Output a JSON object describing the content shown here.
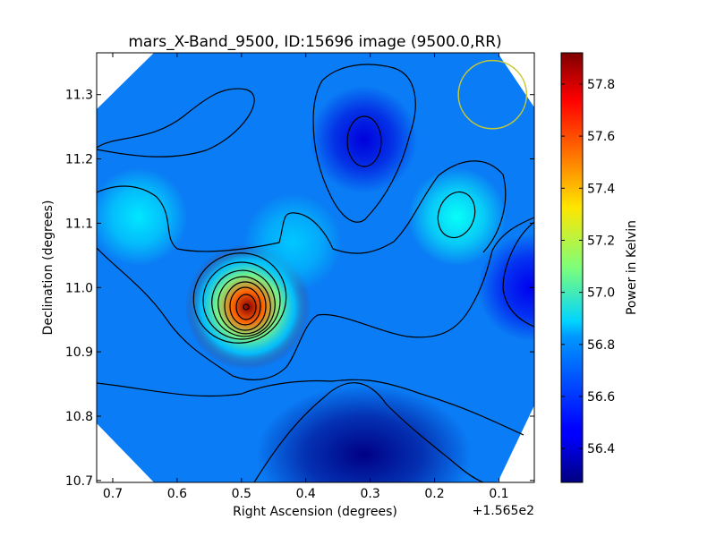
{
  "chart_data": {
    "type": "heatmap",
    "title": "mars_X-Band_9500, ID:15696 image (9500.0,RR)",
    "xlabel": "Right Ascension (degrees)",
    "ylabel": "Declination (degrees)",
    "x_offset_label": "+1.565e2",
    "colorbar_label": "Power in Kelvin",
    "xlim": [
      0.725,
      0.045
    ],
    "ylim": [
      10.697,
      11.365
    ],
    "x_ticks": [
      0.7,
      0.6,
      0.5,
      0.4,
      0.3,
      0.2,
      0.1
    ],
    "x_tick_labels": [
      "0.7",
      "0.6",
      "0.5",
      "0.4",
      "0.3",
      "0.2",
      "0.1"
    ],
    "y_ticks": [
      10.7,
      10.8,
      10.9,
      11.0,
      11.1,
      11.2,
      11.3
    ],
    "y_tick_labels": [
      "10.7",
      "10.8",
      "10.9",
      "11.0",
      "11.1",
      "11.2",
      "11.3"
    ],
    "color_range": [
      56.27,
      57.92
    ],
    "colorbar_ticks": [
      56.4,
      56.6,
      56.8,
      57.0,
      57.2,
      57.4,
      57.6,
      57.8
    ],
    "colorbar_tick_labels": [
      "56.4",
      "56.6",
      "56.8",
      "57.0",
      "57.2",
      "57.4",
      "57.6",
      "57.8"
    ],
    "colormap": "jet",
    "contour_color": "#000000",
    "beam_circle": {
      "ra": 0.11,
      "dec": 11.3,
      "radius_deg": 0.053,
      "color": "#c8c832"
    },
    "features": [
      {
        "kind": "peak",
        "ra": 0.49,
        "dec": 10.97,
        "value": 57.9
      },
      {
        "kind": "warm",
        "ra": 0.66,
        "dec": 11.11,
        "value": 56.85
      },
      {
        "kind": "warm",
        "ra": 0.42,
        "dec": 11.07,
        "value": 56.8
      },
      {
        "kind": "warm",
        "ra": 0.165,
        "dec": 11.11,
        "value": 56.9
      },
      {
        "kind": "cold",
        "ra": 0.31,
        "dec": 11.23,
        "value": 56.42
      },
      {
        "kind": "cold",
        "ra": 0.31,
        "dec": 10.74,
        "value": 56.28
      },
      {
        "kind": "cold",
        "ra": 0.05,
        "dec": 11.0,
        "value": 56.45
      }
    ]
  }
}
